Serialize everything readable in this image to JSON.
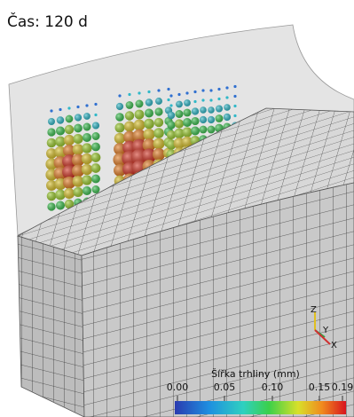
{
  "title": "Čas: 120 d",
  "colorbar": {
    "title": "Šířka trhliny (mm)",
    "ticks": [
      "0.00",
      "0.05",
      "0.10",
      "0.15",
      "0.19"
    ]
  },
  "axes": {
    "z": "Z",
    "y": "Y",
    "x": "X"
  }
}
